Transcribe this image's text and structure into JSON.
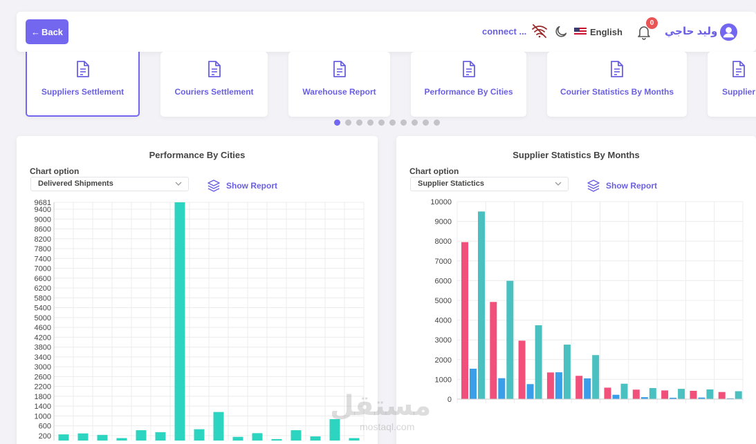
{
  "header": {
    "back_label": "Back",
    "connect_label": "connect ...",
    "language": "English",
    "notifications": "0",
    "username": "وليد حاجي"
  },
  "cards": [
    {
      "label": "Suppliers Settlement",
      "active": true
    },
    {
      "label": "Couriers Settlement"
    },
    {
      "label": "Warehouse Report"
    },
    {
      "label": "Performance By Cities"
    },
    {
      "label": "Courier Statistics By Months"
    },
    {
      "label": "Supplier"
    }
  ],
  "pagination": {
    "count": 10,
    "active": 0
  },
  "left_panel": {
    "title": "Performance By Cities",
    "chart_option_label": "Chart option",
    "select_value": "Delivered Shipments",
    "show_report": "Show Report"
  },
  "right_panel": {
    "title": "Supplier Statistics By Months",
    "chart_option_label": "Chart option",
    "select_value": "Supplier Statictics",
    "show_report": "Show Report"
  },
  "watermark": {
    "main": "مستقل",
    "sub": "mostaql.com"
  },
  "colors": {
    "accent": "#7367f0",
    "teal": "#2dd4bf",
    "pink": "#f0507a",
    "blue": "#3b9ee8",
    "seafoam": "#4bc0c0"
  },
  "chart_data": [
    {
      "type": "bar",
      "title": "Performance By Cities",
      "ylim": [
        0,
        9681
      ],
      "yticks": [
        200,
        600,
        1000,
        1400,
        1800,
        2200,
        2600,
        3000,
        3400,
        3800,
        4200,
        4600,
        5000,
        5400,
        5800,
        6200,
        6600,
        7000,
        7400,
        7800,
        8200,
        8600,
        9000,
        9400,
        9681
      ],
      "values": [
        250,
        290,
        230,
        100,
        420,
        340,
        9681,
        460,
        1160,
        150,
        300,
        60,
        420,
        170,
        870,
        100
      ],
      "color": "#2dd4bf",
      "grid": true
    },
    {
      "type": "bar",
      "title": "Supplier Statistics By Months",
      "ylim": [
        0,
        10000
      ],
      "yticks": [
        0,
        1000,
        2000,
        3000,
        4000,
        5000,
        6000,
        7000,
        8000,
        9000,
        10000
      ],
      "series": [
        {
          "color": "#f0507a",
          "values": [
            7950,
            4920,
            2960,
            1350,
            1180,
            580,
            480,
            440,
            420,
            360
          ]
        },
        {
          "color": "#3b9ee8",
          "values": [
            1540,
            1060,
            760,
            1360,
            1050,
            220,
            100,
            70,
            80,
            40
          ]
        },
        {
          "color": "#4bc0c0",
          "values": [
            9500,
            5990,
            3740,
            2760,
            2230,
            780,
            560,
            520,
            490,
            400
          ]
        }
      ],
      "grid": true
    }
  ]
}
